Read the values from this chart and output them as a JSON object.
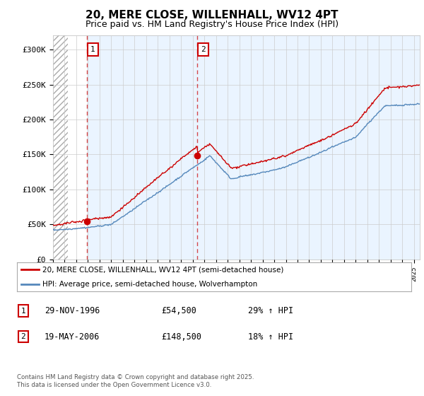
{
  "title": "20, MERE CLOSE, WILLENHALL, WV12 4PT",
  "subtitle": "Price paid vs. HM Land Registry's House Price Index (HPI)",
  "legend_line1": "20, MERE CLOSE, WILLENHALL, WV12 4PT (semi-detached house)",
  "legend_line2": "HPI: Average price, semi-detached house, Wolverhampton",
  "footnote": "Contains HM Land Registry data © Crown copyright and database right 2025.\nThis data is licensed under the Open Government Licence v3.0.",
  "sale1_date": "29-NOV-1996",
  "sale1_price": "£54,500",
  "sale1_hpi": "29% ↑ HPI",
  "sale2_date": "19-MAY-2006",
  "sale2_price": "£148,500",
  "sale2_hpi": "18% ↑ HPI",
  "xmin": 1994.0,
  "xmax": 2025.5,
  "ymin": 0,
  "ymax": 320000,
  "yticks": [
    0,
    50000,
    100000,
    150000,
    200000,
    250000,
    300000
  ],
  "ytick_labels": [
    "£0",
    "£50K",
    "£100K",
    "£150K",
    "£200K",
    "£250K",
    "£300K"
  ],
  "sale1_x": 1996.91,
  "sale1_y": 54500,
  "sale2_x": 2006.38,
  "sale2_y": 148500,
  "hatch_xmax": 1995.3,
  "red_color": "#cc0000",
  "blue_color": "#5588bb",
  "blue_fill_color": "#ddeeff",
  "background_color": "#ffffff",
  "grid_color": "#cccccc",
  "title_fontsize": 11,
  "subtitle_fontsize": 9
}
